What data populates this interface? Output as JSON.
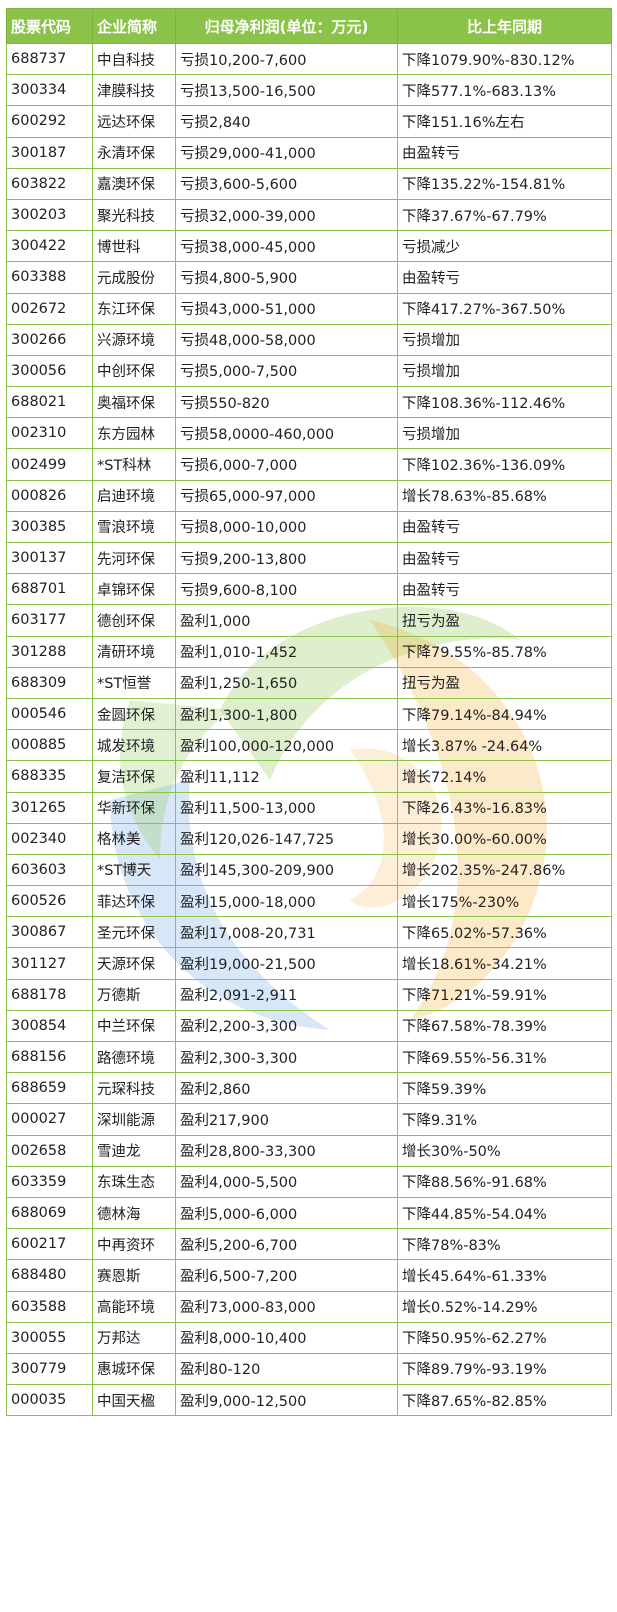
{
  "table": {
    "headers": [
      "股票代码",
      "企业简称",
      "归母净利润(单位：万元)",
      "比上年同期"
    ],
    "rows": [
      [
        "688737",
        "中自科技",
        "亏损10,200-7,600",
        "下降1079.90%-830.12%"
      ],
      [
        "300334",
        "津膜科技",
        "亏损13,500-16,500",
        "下降577.1%-683.13%"
      ],
      [
        "600292",
        "远达环保",
        "亏损2,840",
        "下降151.16%左右"
      ],
      [
        "300187",
        "永清环保",
        "亏损29,000-41,000",
        "由盈转亏"
      ],
      [
        "603822",
        "嘉澳环保",
        "亏损3,600-5,600",
        "下降135.22%-154.81%"
      ],
      [
        "300203",
        "聚光科技",
        "亏损32,000-39,000",
        "下降37.67%-67.79%"
      ],
      [
        "300422",
        "博世科",
        "亏损38,000-45,000",
        "亏损减少"
      ],
      [
        "603388",
        "元成股份",
        "亏损4,800-5,900",
        "由盈转亏"
      ],
      [
        "002672",
        "东江环保",
        "亏损43,000-51,000",
        "下降417.27%-367.50%"
      ],
      [
        "300266",
        "兴源环境",
        "亏损48,000-58,000",
        "亏损增加"
      ],
      [
        "300056",
        "中创环保",
        "亏损5,000-7,500",
        "亏损增加"
      ],
      [
        "688021",
        "奥福环保",
        "亏损550-820",
        "下降108.36%-112.46%"
      ],
      [
        "002310",
        "东方园林",
        "亏损58,0000-460,000",
        "亏损增加"
      ],
      [
        "002499",
        "*ST科林",
        "亏损6,000-7,000",
        "下降102.36%-136.09%"
      ],
      [
        "000826",
        "启迪环境",
        "亏损65,000-97,000",
        "增长78.63%-85.68%"
      ],
      [
        "300385",
        "雪浪环境",
        "亏损8,000-10,000",
        "由盈转亏"
      ],
      [
        "300137",
        "先河环保",
        "亏损9,200-13,800",
        "由盈转亏"
      ],
      [
        "688701",
        "卓锦环保",
        "亏损9,600-8,100",
        "由盈转亏"
      ],
      [
        "603177",
        "德创环保",
        "盈利1,000",
        "扭亏为盈"
      ],
      [
        "301288",
        "清研环境",
        "盈利1,010-1,452",
        "下降79.55%-85.78%"
      ],
      [
        "688309",
        "*ST恒誉",
        "盈利1,250-1,650",
        "扭亏为盈"
      ],
      [
        "000546",
        "金圆环保",
        "盈利1,300-1,800",
        "下降79.14%-84.94%"
      ],
      [
        "000885",
        "城发环境",
        "盈利100,000-120,000",
        "增长3.87% -24.64%"
      ],
      [
        "688335",
        "复洁环保",
        "盈利11,112",
        "增长72.14%"
      ],
      [
        "301265",
        "华新环保",
        "盈利11,500-13,000",
        "下降26.43%-16.83%"
      ],
      [
        "002340",
        "格林美",
        "盈利120,026-147,725",
        "增长30.00%-60.00%"
      ],
      [
        "603603",
        "*ST博天",
        "盈利145,300-209,900",
        "增长202.35%-247.86%"
      ],
      [
        "600526",
        "菲达环保",
        "盈利15,000-18,000",
        "增长175%-230%"
      ],
      [
        "300867",
        "圣元环保",
        "盈利17,008-20,731",
        "下降65.02%-57.36%"
      ],
      [
        "301127",
        "天源环保",
        "盈利19,000-21,500",
        "增长18.61%-34.21%"
      ],
      [
        "688178",
        "万德斯",
        "盈利2,091-2,911",
        "下降71.21%-59.91%"
      ],
      [
        "300854",
        "中兰环保",
        "盈利2,200-3,300",
        "下降67.58%-78.39%"
      ],
      [
        "688156",
        "路德环境",
        "盈利2,300-3,300",
        "下降69.55%-56.31%"
      ],
      [
        "688659",
        "元琛科技",
        "盈利2,860",
        "下降59.39%"
      ],
      [
        "000027",
        "深圳能源",
        "盈利217,900",
        "下降9.31%"
      ],
      [
        "002658",
        "雪迪龙",
        "盈利28,800-33,300",
        "增长30%-50%"
      ],
      [
        "603359",
        "东珠生态",
        "盈利4,000-5,500",
        "下降88.56%-91.68%"
      ],
      [
        "688069",
        "德林海",
        "盈利5,000-6,000",
        "下降44.85%-54.04%"
      ],
      [
        "600217",
        "中再资环",
        "盈利5,200-6,700",
        "下降78%-83%"
      ],
      [
        "688480",
        "赛恩斯",
        "盈利6,500-7,200",
        "增长45.64%-61.33%"
      ],
      [
        "603588",
        "高能环境",
        "盈利73,000-83,000",
        "增长0.52%-14.29%"
      ],
      [
        "300055",
        "万邦达",
        "盈利8,000-10,400",
        "下降50.95%-62.27%"
      ],
      [
        "300779",
        "惠城环保",
        "盈利80-120",
        "下降89.79%-93.19%"
      ],
      [
        "000035",
        "中国天楹",
        "盈利9,000-12,500",
        "下降87.65%-82.85%"
      ]
    ]
  },
  "colors": {
    "header_bg": "#8bc34a",
    "header_text": "#ffffff",
    "border": "#8bc34a",
    "body_text": "#222222"
  },
  "icons": [
    "watermark-logo"
  ]
}
